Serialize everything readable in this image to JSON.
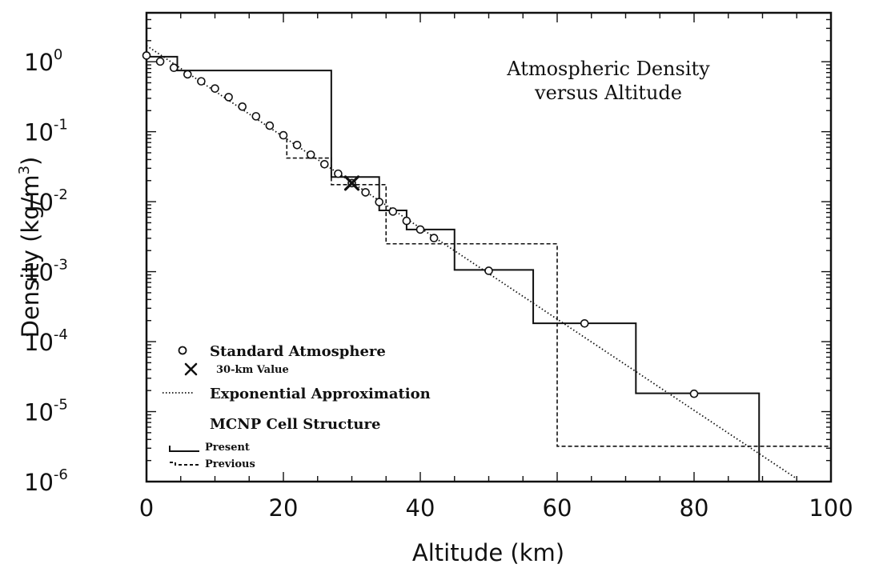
{
  "chart_data": {
    "type": "line",
    "title_lines": [
      "Atmospheric Density",
      "versus Altitude"
    ],
    "xlabel": "Altitude (km)",
    "ylabel_base": "Density (kg/m",
    "ylabel_sup": "3",
    "ylabel_tail": ")",
    "xlim": [
      0,
      100
    ],
    "ylim": [
      1e-06,
      5
    ],
    "y_scale": "log",
    "grid": false,
    "legend_position": "bottom-left",
    "x_ticks": [
      "0",
      "20",
      "40",
      "60",
      "80",
      "100"
    ],
    "y_ticks": [
      {
        "base": "10",
        "exp": "0"
      },
      {
        "base": "10",
        "exp": "-1"
      },
      {
        "base": "10",
        "exp": "-2"
      },
      {
        "base": "10",
        "exp": "-3"
      },
      {
        "base": "10",
        "exp": "-4"
      },
      {
        "base": "10",
        "exp": "-5"
      },
      {
        "base": "10",
        "exp": "-6"
      }
    ],
    "legend": {
      "standard": "Standard Atmosphere",
      "value30": "30-km Value",
      "exponential": "Exponential Approximation",
      "cell_header": "MCNP Cell Structure",
      "present": "Present",
      "previous": "Previous"
    },
    "series": [
      {
        "name": "Standard Atmosphere",
        "style": "circle-markers",
        "x": [
          0,
          2,
          4,
          6,
          8,
          10,
          12,
          14,
          16,
          18,
          20,
          22,
          24,
          26,
          28,
          30,
          32,
          34,
          36,
          38,
          40,
          42,
          50,
          64,
          80
        ],
        "y": [
          1.225,
          1.007,
          0.819,
          0.66,
          0.525,
          0.414,
          0.312,
          0.228,
          0.166,
          0.122,
          0.0889,
          0.0645,
          0.0469,
          0.0343,
          0.0251,
          0.0184,
          0.0136,
          0.00989,
          0.00724,
          0.00532,
          0.004,
          0.00302,
          0.00103,
          0.000182,
          1.8e-05
        ]
      },
      {
        "name": "30-km Value",
        "style": "x-marker",
        "x": [
          30
        ],
        "y": [
          0.0184
        ]
      },
      {
        "name": "Exponential Approximation",
        "style": "dotted",
        "x": [
          0,
          95
        ],
        "y": [
          1.7,
          1.1e-06
        ]
      },
      {
        "name": "Present",
        "style": "solid-step",
        "x": [
          0,
          4.5,
          4.5,
          27,
          27,
          34,
          34,
          38,
          38,
          45,
          45,
          56.5,
          56.5,
          71.5,
          71.5,
          89.5,
          89.5
        ],
        "y": [
          1.18,
          1.18,
          0.75,
          0.75,
          0.0225,
          0.0225,
          0.0075,
          0.0075,
          0.004,
          0.004,
          0.00106,
          0.00106,
          0.000183,
          0.000183,
          1.83e-05,
          1.83e-05,
          1e-06
        ]
      },
      {
        "name": "Previous",
        "style": "dashed-step",
        "x": [
          20.5,
          20.5,
          27,
          27,
          35,
          35,
          60,
          60,
          100
        ],
        "y": [
          0.08,
          0.042,
          0.042,
          0.0175,
          0.0175,
          0.0025,
          0.0025,
          3.2e-06,
          3.2e-06
        ]
      }
    ]
  }
}
